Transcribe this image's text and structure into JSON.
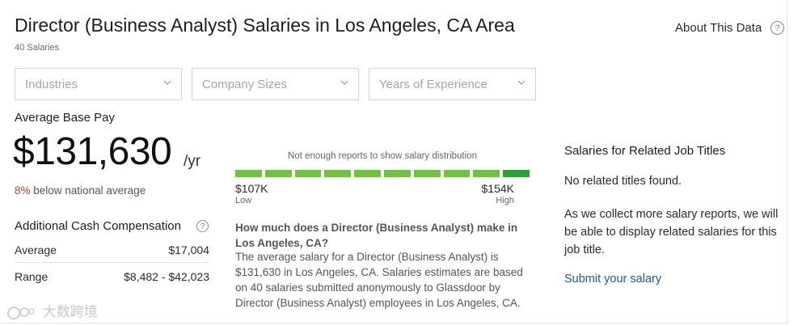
{
  "header": {
    "title": "Director (Business Analyst) Salaries in Los Angeles, CA Area",
    "count": "40 Salaries",
    "about_label": "About This Data",
    "help_glyph": "?"
  },
  "filters": [
    {
      "label": "Industries",
      "icon": "chevron-down-icon"
    },
    {
      "label": "Company Sizes",
      "icon": "chevron-down-icon"
    },
    {
      "label": "Years of Experience",
      "icon": "chevron-down-icon"
    }
  ],
  "pay": {
    "label": "Average Base Pay",
    "amount": "$131,630",
    "unit": "/yr",
    "pct": "8%",
    "pct_text": " below national average"
  },
  "cash": {
    "title": "Additional Cash Compensation",
    "rows": [
      {
        "label": "Average",
        "value": "$17,004"
      },
      {
        "label": "Range",
        "value": "$8,482 - $42,023"
      }
    ]
  },
  "distribution": {
    "note": "Not enough reports to show salary distribution",
    "segments": 10,
    "low_value": "$107K",
    "low_label": "Low",
    "high_value": "$154K",
    "high_label": "High",
    "colors": {
      "bar": "#6ec046",
      "bar_end": "#2e9e3c"
    }
  },
  "faq": {
    "question": "How much does a Director (Business Analyst) make in Los Angeles, CA?",
    "answer": "The average salary for a Director (Business Analyst) is $131,630 in Los Angeles, CA. Salaries estimates are based on 40 salaries submitted anonymously to Glassdoor by Director (Business Analyst) employees in Los Angeles, CA."
  },
  "related": {
    "title": "Salaries for Related Job Titles",
    "none": "No related titles found.",
    "info": "As we collect more salary reports, we will be able to display related salaries for this job title.",
    "link": "Submit your salary",
    "link_color": "#1d5a95"
  },
  "watermark": {
    "text": "大数跨境"
  }
}
